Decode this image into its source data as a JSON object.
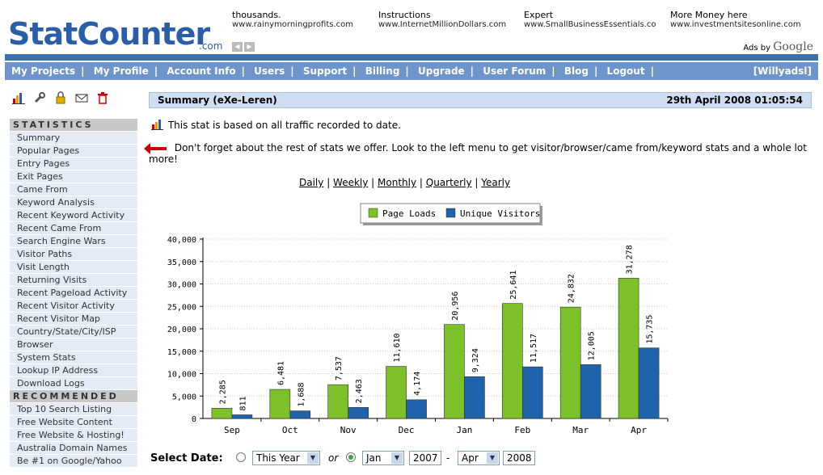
{
  "brand": {
    "name": "StatCounter",
    "suffix": ".com"
  },
  "ads": [
    {
      "line1": "thousands.",
      "line2": "www.rainymorningprofits.com"
    },
    {
      "line1": "Instructions",
      "line2": "www.InternetMillionDollars.com"
    },
    {
      "line1": "Expert",
      "line2": "www.SmallBusinessEssentials.co"
    },
    {
      "line1": "More Money here",
      "line2": "www.investmentsitesonline.com"
    }
  ],
  "ads_by": {
    "prefix": "Ads by",
    "brand": "Google"
  },
  "nav": {
    "items": [
      "My Projects",
      "My Profile",
      "Account Info",
      "Users",
      "Support",
      "Billing",
      "Upgrade",
      "User Forum",
      "Blog",
      "Logout"
    ],
    "user": "[Willyadsl]"
  },
  "tools": [
    "bar-chart-icon",
    "wrench-icon",
    "lock-icon",
    "envelope-icon",
    "trash-icon"
  ],
  "sidebar": {
    "statistics_title": "STATISTICS",
    "statistics": [
      "Summary",
      "Popular Pages",
      "Entry Pages",
      "Exit Pages",
      "Came From",
      "Keyword Analysis",
      "Recent Keyword Activity",
      "Recent Came From",
      "Search Engine Wars",
      "Visitor Paths",
      "Visit Length",
      "Returning Visits",
      "Recent Pageload Activity",
      "Recent Visitor Activity",
      "Recent Visitor Map",
      "Country/State/City/ISP",
      "Browser",
      "System Stats",
      "Lookup IP Address",
      "Download Logs"
    ],
    "recommended_title": "RECOMMENDED",
    "recommended": [
      "Top 10 Search Listing",
      "Free Website Content",
      "Free Website & Hosting!",
      "Australia Domain Names",
      "Be #1 on Google/Yahoo"
    ]
  },
  "summary": {
    "title": "Summary (eXe-Leren)",
    "date": "29th April 2008 01:05:54"
  },
  "info": {
    "traffic_note": "This stat is based on all traffic recorded to date.",
    "menu_note": "Don't forget about the rest of stats we offer. Look to the left menu to get visitor/browser/came from/keyword stats and a whole lot more!"
  },
  "periods": [
    "Daily",
    "Weekly",
    "Monthly",
    "Quarterly",
    "Yearly"
  ],
  "chart_data": {
    "type": "bar",
    "categories": [
      "Sep",
      "Oct",
      "Nov",
      "Dec",
      "Jan",
      "Feb",
      "Mar",
      "Apr"
    ],
    "series": [
      {
        "name": "Page Loads",
        "color": "#7dc12a",
        "values": [
          2285,
          6481,
          7537,
          11610,
          20956,
          25641,
          24832,
          31278
        ]
      },
      {
        "name": "Unique Visitors",
        "color": "#1f63ad",
        "values": [
          811,
          1688,
          2463,
          4174,
          9324,
          11517,
          12005,
          15735
        ]
      }
    ],
    "ylim": [
      0,
      40000
    ],
    "yticks": [
      "0",
      "5,000",
      "10,000",
      "15,000",
      "20,000",
      "25,000",
      "30,000",
      "35,000",
      "40,000"
    ],
    "value_labels": [
      [
        "2,285",
        "6,481",
        "7,537",
        "11,610",
        "20,956",
        "25,641",
        "24,832",
        "31,278"
      ],
      [
        "811",
        "1,688",
        "2,463",
        "4,174",
        "9,324",
        "11,517",
        "12,005",
        "15,735"
      ]
    ],
    "legend": "top-center",
    "grid": true
  },
  "date_select": {
    "label": "Select Date:",
    "preset": "This Year",
    "or": "or",
    "from_month": "Jan",
    "from_year": "2007",
    "dash": "-",
    "to_month": "Apr",
    "to_year": "2008"
  }
}
